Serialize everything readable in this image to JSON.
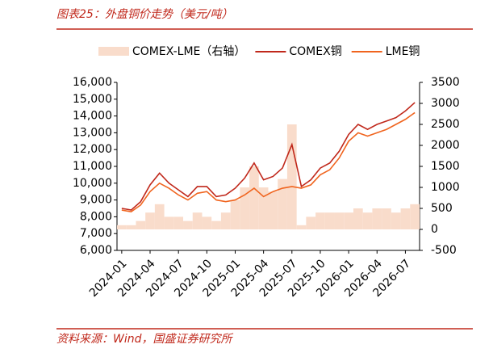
{
  "chart_data": {
    "type": "line",
    "title": "图表25：外盘铜价走势（美元/吨）",
    "source": "资料来源：Wind，国盛证券研究所",
    "x": [
      "2024-01",
      "2024-02",
      "2024-03",
      "2024-04",
      "2024-05",
      "2024-06",
      "2024-07",
      "2024-08",
      "2024-09",
      "2024-10",
      "2024-11",
      "2024-12",
      "2025-01",
      "2025-02",
      "2025-03",
      "2025-04",
      "2025-05",
      "2025-06",
      "2025-07",
      "2025-08",
      "2025-09",
      "2025-10",
      "2025-11",
      "2025-12",
      "2026-01",
      "2026-02",
      "2026-03",
      "2026-04",
      "2026-05",
      "2026-06",
      "2026-07",
      "2026-08"
    ],
    "xticks": [
      "2024-01",
      "2024-04",
      "2024-07",
      "2024-10",
      "2025-01",
      "2025-04",
      "2025-07",
      "2025-10",
      "2026-01",
      "2026-04",
      "2026-07"
    ],
    "series": [
      {
        "name": "COMEX-LME（右轴）",
        "color": "#f9dccb",
        "axis": "y2",
        "kind": "area",
        "values": [
          100,
          100,
          200,
          400,
          600,
          300,
          300,
          200,
          400,
          300,
          200,
          400,
          700,
          1000,
          1500,
          1000,
          900,
          1200,
          2500,
          100,
          300,
          400,
          400,
          400,
          400,
          500,
          400,
          500,
          500,
          400,
          500,
          600
        ]
      },
      {
        "name": "COMEX铜",
        "color": "#c0281b",
        "values": [
          8500,
          8400,
          8900,
          9900,
          10600,
          10000,
          9600,
          9200,
          9800,
          9800,
          9200,
          9300,
          9700,
          10300,
          11200,
          10200,
          10400,
          10900,
          12300,
          9800,
          10200,
          10900,
          11200,
          11900,
          12900,
          13500,
          13200,
          13500,
          13700,
          13900,
          14300,
          14800
        ]
      },
      {
        "name": "LME铜",
        "color": "#f0641e",
        "values": [
          8400,
          8300,
          8700,
          9500,
          10000,
          9700,
          9300,
          9000,
          9400,
          9500,
          9000,
          8900,
          9000,
          9300,
          9700,
          9200,
          9500,
          9700,
          9800,
          9700,
          9900,
          10500,
          10800,
          11500,
          12500,
          13000,
          12800,
          13000,
          13200,
          13500,
          13800,
          14200
        ]
      }
    ],
    "ylim": [
      6000,
      16000
    ],
    "yticks": [
      {
        "value": 6000,
        "label": "6,000"
      },
      {
        "value": 7000,
        "label": "7,000"
      },
      {
        "value": 8000,
        "label": "8,000"
      },
      {
        "value": 9000,
        "label": "9,000"
      },
      {
        "value": 10000,
        "label": "10,000"
      },
      {
        "value": 11000,
        "label": "11,000"
      },
      {
        "value": 12000,
        "label": "12,000"
      },
      {
        "value": 13000,
        "label": "13,000"
      },
      {
        "value": 14000,
        "label": "14,000"
      },
      {
        "value": 15000,
        "label": "15,000"
      },
      {
        "value": 16000,
        "label": "16,000"
      }
    ],
    "y2lim": [
      -500,
      3500
    ],
    "y2ticks": [
      -500,
      0,
      500,
      1000,
      1500,
      2000,
      2500,
      3000,
      3500
    ]
  }
}
